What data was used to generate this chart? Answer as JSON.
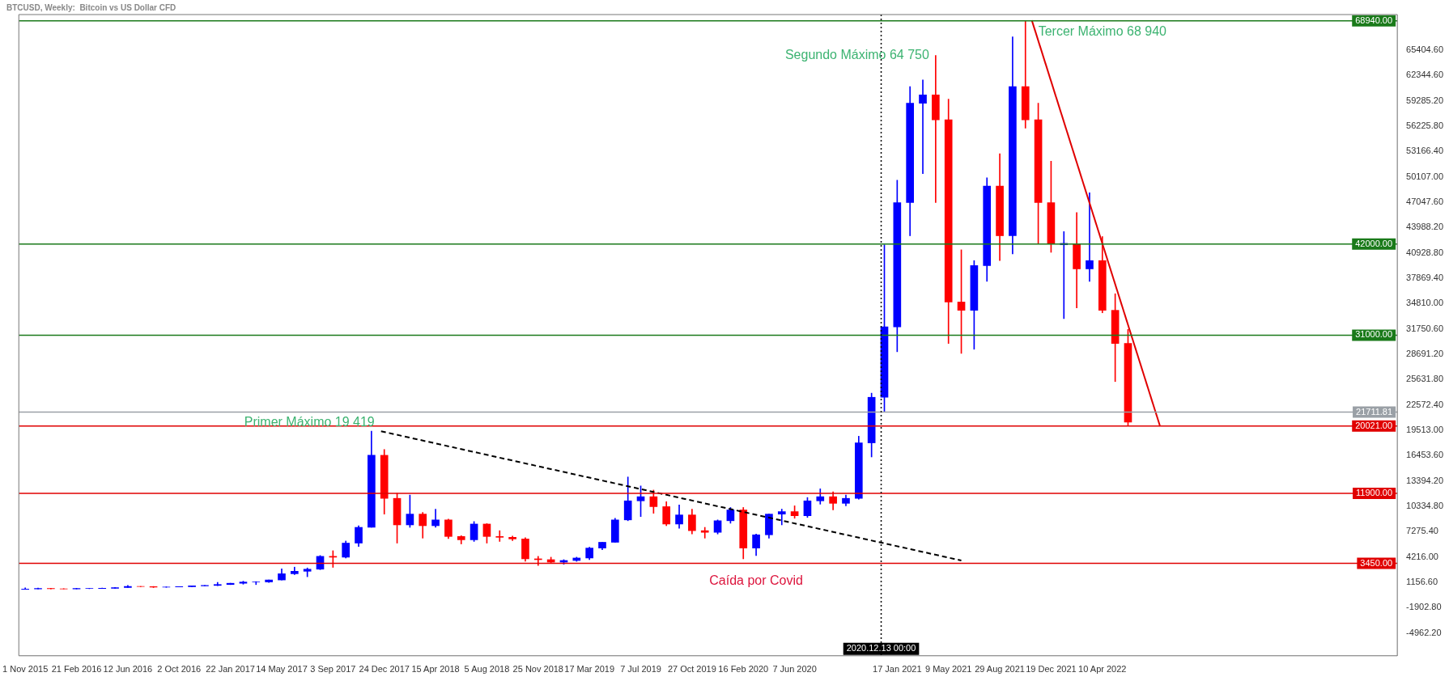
{
  "chart_data": {
    "type": "candlestick",
    "title": "BTCUSD, Weekly:  Bitcoin vs US Dollar CFD",
    "x": [
      "2015-11-01",
      "2015-11-29",
      "2015-12-27",
      "2016-01-24",
      "2016-02-21",
      "2016-03-20",
      "2016-04-17",
      "2016-05-15",
      "2016-06-12",
      "2016-07-10",
      "2016-08-07",
      "2016-09-04",
      "2016-10-02",
      "2016-10-30",
      "2016-11-27",
      "2016-12-25",
      "2017-01-22",
      "2017-02-19",
      "2017-03-19",
      "2017-04-16",
      "2017-05-14",
      "2017-06-11",
      "2017-07-09",
      "2017-08-06",
      "2017-09-03",
      "2017-10-01",
      "2017-10-29",
      "2017-11-26",
      "2017-12-24",
      "2018-01-21",
      "2018-02-18",
      "2018-03-18",
      "2018-04-15",
      "2018-05-13",
      "2018-06-10",
      "2018-07-08",
      "2018-08-05",
      "2018-09-02",
      "2018-09-30",
      "2018-10-28",
      "2018-11-25",
      "2018-12-23",
      "2019-01-20",
      "2019-02-17",
      "2019-03-17",
      "2019-04-14",
      "2019-05-12",
      "2019-06-09",
      "2019-07-07",
      "2019-08-04",
      "2019-09-01",
      "2019-09-29",
      "2019-10-27",
      "2019-11-24",
      "2019-12-22",
      "2020-01-19",
      "2020-02-16",
      "2020-03-15",
      "2020-04-12",
      "2020-05-10",
      "2020-06-07",
      "2020-07-05",
      "2020-08-02",
      "2020-08-30",
      "2020-09-27",
      "2020-10-25",
      "2020-11-22",
      "2020-12-20",
      "2021-01-17",
      "2021-02-14",
      "2021-03-14",
      "2021-04-11",
      "2021-05-09",
      "2021-06-06",
      "2021-07-04",
      "2021-08-01",
      "2021-08-29",
      "2021-09-26",
      "2021-10-24",
      "2021-11-21",
      "2021-12-19",
      "2022-01-16",
      "2022-02-13",
      "2022-03-13",
      "2022-04-10",
      "2022-05-08",
      "2022-06-05"
    ],
    "ohlc": [
      [
        315,
        500,
        310,
        360
      ],
      [
        360,
        465,
        355,
        430
      ],
      [
        430,
        460,
        360,
        380
      ],
      [
        380,
        410,
        365,
        375
      ],
      [
        375,
        440,
        370,
        415
      ],
      [
        415,
        430,
        400,
        420
      ],
      [
        420,
        465,
        415,
        450
      ],
      [
        450,
        540,
        440,
        530
      ],
      [
        530,
        780,
        530,
        660
      ],
      [
        660,
        680,
        640,
        655
      ],
      [
        655,
        660,
        530,
        580
      ],
      [
        580,
        620,
        570,
        605
      ],
      [
        605,
        650,
        600,
        640
      ],
      [
        640,
        750,
        640,
        730
      ],
      [
        730,
        800,
        730,
        790
      ],
      [
        790,
        1160,
        760,
        900
      ],
      [
        900,
        1060,
        890,
        1050
      ],
      [
        1050,
        1300,
        940,
        1200
      ],
      [
        1200,
        1250,
        890,
        1210
      ],
      [
        1210,
        1450,
        1150,
        1450
      ],
      [
        1450,
        2800,
        1450,
        2200
      ],
      [
        2200,
        3000,
        2100,
        2500
      ],
      [
        2500,
        2900,
        1840,
        2750
      ],
      [
        2750,
        4400,
        2700,
        4300
      ],
      [
        4300,
        4980,
        2970,
        4200
      ],
      [
        4200,
        6150,
        4100,
        5900
      ],
      [
        5900,
        8000,
        5500,
        7800
      ],
      [
        7800,
        19419,
        7800,
        16500
      ],
      [
        16500,
        17200,
        9400,
        11300
      ],
      [
        11300,
        11900,
        5900,
        8100
      ],
      [
        8100,
        11700,
        7800,
        9400
      ],
      [
        9400,
        9600,
        6500,
        8000
      ],
      [
        8000,
        9990,
        7800,
        8700
      ],
      [
        8700,
        8800,
        6450,
        6700
      ],
      [
        6700,
        6800,
        5800,
        6300
      ],
      [
        6300,
        8500,
        6100,
        8200
      ],
      [
        8200,
        8250,
        5900,
        6700
      ],
      [
        6700,
        7400,
        6100,
        6600
      ],
      [
        6600,
        6750,
        6200,
        6400
      ],
      [
        6400,
        6550,
        3700,
        4000
      ],
      [
        4000,
        4300,
        3200,
        3900
      ],
      [
        3900,
        4200,
        3550,
        3600
      ],
      [
        3600,
        3900,
        3350,
        3800
      ],
      [
        3800,
        4200,
        3700,
        4100
      ],
      [
        4100,
        5400,
        3900,
        5300
      ],
      [
        5300,
        6000,
        5100,
        6000
      ],
      [
        6000,
        8900,
        6000,
        8700
      ],
      [
        8700,
        13880,
        8600,
        11000
      ],
      [
        11000,
        12800,
        9100,
        11500
      ],
      [
        11500,
        12300,
        9500,
        10300
      ],
      [
        10300,
        10900,
        8000,
        8200
      ],
      [
        8200,
        10500,
        7700,
        9300
      ],
      [
        9300,
        10000,
        7000,
        7400
      ],
      [
        7400,
        7800,
        6500,
        7200
      ],
      [
        7200,
        8700,
        7000,
        8600
      ],
      [
        8600,
        10200,
        8300,
        9900
      ],
      [
        9900,
        10200,
        4000,
        5300
      ],
      [
        5300,
        7000,
        4400,
        6900
      ],
      [
        6900,
        9400,
        6500,
        9400
      ],
      [
        9400,
        10000,
        8100,
        9700
      ],
      [
        9700,
        10400,
        8900,
        9200
      ],
      [
        9200,
        11400,
        9000,
        11000
      ],
      [
        11000,
        12450,
        10600,
        11500
      ],
      [
        11500,
        12100,
        9900,
        10700
      ],
      [
        10700,
        11700,
        10400,
        11300
      ],
      [
        11300,
        18800,
        11200,
        18000
      ],
      [
        18000,
        24000,
        16300,
        23500
      ],
      [
        23500,
        41900,
        21800,
        32000
      ],
      [
        32000,
        49700,
        29000,
        47000
      ],
      [
        47000,
        61000,
        43000,
        59000
      ],
      [
        59000,
        61800,
        50500,
        60000
      ],
      [
        60000,
        64750,
        47000,
        57000
      ],
      [
        57000,
        59500,
        30000,
        35000
      ],
      [
        35000,
        41300,
        28800,
        34000
      ],
      [
        34000,
        40000,
        29300,
        39400
      ],
      [
        39400,
        50000,
        37500,
        49000
      ],
      [
        49000,
        52900,
        40000,
        43000
      ],
      [
        43000,
        67000,
        40800,
        61000
      ],
      [
        61000,
        68940,
        56000,
        57000
      ],
      [
        57000,
        59000,
        42000,
        47000
      ],
      [
        47000,
        52000,
        41000,
        42000
      ],
      [
        42000,
        43500,
        33000,
        42000
      ],
      [
        42000,
        45800,
        34300,
        39000
      ],
      [
        39000,
        48200,
        37500,
        40000
      ],
      [
        40000,
        42900,
        33700,
        34000
      ],
      [
        34000,
        36000,
        25400,
        30000
      ],
      [
        30000,
        31700,
        20100,
        20500
      ]
    ],
    "colors": [
      "#0000ff",
      "#0000ff",
      "#ff0000",
      "#ff0000",
      "#0000ff",
      "#0000ff",
      "#0000ff",
      "#0000ff",
      "#0000ff",
      "#ff0000",
      "#ff0000",
      "#0000ff",
      "#0000ff",
      "#0000ff",
      "#0000ff",
      "#0000ff",
      "#0000ff",
      "#0000ff",
      "#0000ff",
      "#0000ff",
      "#0000ff",
      "#0000ff",
      "#0000ff",
      "#0000ff",
      "#ff0000",
      "#0000ff",
      "#0000ff",
      "#0000ff",
      "#ff0000",
      "#ff0000",
      "#0000ff",
      "#ff0000",
      "#0000ff",
      "#ff0000",
      "#ff0000",
      "#0000ff",
      "#ff0000",
      "#ff0000",
      "#ff0000",
      "#ff0000",
      "#ff0000",
      "#ff0000",
      "#0000ff",
      "#0000ff",
      "#0000ff",
      "#0000ff",
      "#0000ff",
      "#0000ff",
      "#0000ff",
      "#ff0000",
      "#ff0000",
      "#0000ff",
      "#ff0000",
      "#ff0000",
      "#0000ff",
      "#0000ff",
      "#ff0000",
      "#0000ff",
      "#0000ff",
      "#0000ff",
      "#ff0000",
      "#0000ff",
      "#0000ff",
      "#ff0000",
      "#0000ff",
      "#0000ff",
      "#0000ff",
      "#0000ff",
      "#0000ff",
      "#0000ff",
      "#0000ff",
      "#ff0000",
      "#ff0000",
      "#ff0000",
      "#0000ff",
      "#0000ff",
      "#ff0000",
      "#0000ff",
      "#ff0000",
      "#ff0000",
      "#ff0000",
      "#0000ff",
      "#ff0000",
      "#0000ff",
      "#ff0000",
      "#ff0000",
      "#ff0000"
    ],
    "series": [
      {
        "type": "line",
        "x": [
          "2021-11-07",
          "2022-08-14"
        ],
        "values": [
          69000,
          20000
        ],
        "color": "#e00000"
      },
      {
        "type": "line",
        "x": [
          "2017-12-17",
          "2021-06-06"
        ],
        "values": [
          19400,
          3800
        ],
        "color": "#000000",
        "line_style": "dashed"
      }
    ],
    "xlim": [
      "2015-10-18",
      "2024-01-14"
    ],
    "xticks": [
      {
        "value": "2015-11-01",
        "label": "1 Nov 2015"
      },
      {
        "value": "2016-02-21",
        "label": "21 Feb 2016"
      },
      {
        "value": "2016-06-12",
        "label": "12 Jun 2016"
      },
      {
        "value": "2016-10-02",
        "label": "2 Oct 2016"
      },
      {
        "value": "2017-01-22",
        "label": "22 Jan 2017"
      },
      {
        "value": "2017-05-14",
        "label": "14 May 2017"
      },
      {
        "value": "2017-09-03",
        "label": "3 Sep 2017"
      },
      {
        "value": "2017-12-24",
        "label": "24 Dec 2017"
      },
      {
        "value": "2018-04-15",
        "label": "15 Apr 2018"
      },
      {
        "value": "2018-08-05",
        "label": "5 Aug 2018"
      },
      {
        "value": "2018-11-25",
        "label": "25 Nov 2018"
      },
      {
        "value": "2019-03-17",
        "label": "17 Mar 2019"
      },
      {
        "value": "2019-07-07",
        "label": "7 Jul 2019"
      },
      {
        "value": "2019-10-27",
        "label": "27 Oct 2019"
      },
      {
        "value": "2020-02-16",
        "label": "16 Feb 2020"
      },
      {
        "value": "2020-06-07",
        "label": "7 Jun 2020"
      },
      {
        "value": "2021-01-17",
        "label": "17 Jan 2021"
      },
      {
        "value": "2021-05-09",
        "label": "9 May 2021"
      },
      {
        "value": "2021-08-29",
        "label": "29 Aug 2021"
      },
      {
        "value": "2021-12-19",
        "label": "19 Dec 2021"
      },
      {
        "value": "2022-04-10",
        "label": "10 Apr 2022"
      }
    ],
    "ylim": [
      -7700,
      69700
    ],
    "yticks": [
      {
        "value": 65404.6,
        "label": "65404.60"
      },
      {
        "value": 62344.6,
        "label": "62344.60"
      },
      {
        "value": 59285.2,
        "label": "59285.20"
      },
      {
        "value": 56225.8,
        "label": "56225.80"
      },
      {
        "value": 53166.4,
        "label": "53166.40"
      },
      {
        "value": 50107,
        "label": "50107.00"
      },
      {
        "value": 47047.6,
        "label": "47047.60"
      },
      {
        "value": 43988.2,
        "label": "43988.20"
      },
      {
        "value": 40928.8,
        "label": "40928.80"
      },
      {
        "value": 37869.4,
        "label": "37869.40"
      },
      {
        "value": 34810,
        "label": "34810.00"
      },
      {
        "value": 31750.6,
        "label": "31750.60"
      },
      {
        "value": 28691.2,
        "label": "28691.20"
      },
      {
        "value": 25631.8,
        "label": "25631.80"
      },
      {
        "value": 22572.4,
        "label": "22572.40"
      },
      {
        "value": 19513,
        "label": "19513.00"
      },
      {
        "value": 16453.6,
        "label": "16453.60"
      },
      {
        "value": 13394.2,
        "label": "13394.20"
      },
      {
        "value": 10334.8,
        "label": "10334.80"
      },
      {
        "value": 7275.4,
        "label": "7275.40"
      },
      {
        "value": 4216,
        "label": "4216.00"
      },
      {
        "value": 1156.6,
        "label": "1156.60"
      },
      {
        "value": -1902.8,
        "label": "-1902.80"
      },
      {
        "value": -4962.2,
        "label": "-4962.20"
      }
    ],
    "ref_lines": [
      {
        "axis": "y",
        "value": 68940,
        "label": "68940.00",
        "color": "#1a7a1a"
      },
      {
        "axis": "y",
        "value": 42000,
        "label": "42000.00",
        "color": "#1a7a1a"
      },
      {
        "axis": "y",
        "value": 31000,
        "label": "31000.00",
        "color": "#1a7a1a"
      },
      {
        "axis": "y",
        "value": 21711.81,
        "label": "21711.81",
        "color": "#9aa0a6"
      },
      {
        "axis": "y",
        "value": 20021,
        "label": "20021.00",
        "color": "#e00000"
      },
      {
        "axis": "y",
        "value": 11900,
        "label": "11900.00",
        "color": "#e00000"
      },
      {
        "axis": "y",
        "value": 3450,
        "label": "3450.00",
        "color": "#e00000"
      },
      {
        "axis": "x",
        "value": "2020-12-13",
        "label": "2020.12.13 00:00",
        "color": "#000000",
        "line_style": "dotted"
      }
    ],
    "annotations": [
      {
        "text": "Primer Máximo 19 419",
        "x": "2017-12-17",
        "y": 19419
      },
      {
        "text": "Segundo Máximo 64 750",
        "x": "2021-04-11",
        "y": 64750
      },
      {
        "text": "Tercer Máximo 68 940",
        "x": "2021-11-07",
        "y": 68940
      },
      {
        "text": "Caída por Covid",
        "x": "2020-03-15",
        "y": 3450
      }
    ],
    "grid": false,
    "legend": false
  }
}
